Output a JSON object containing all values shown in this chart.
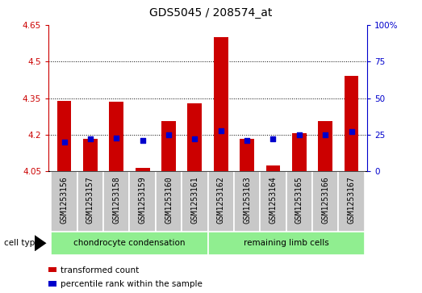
{
  "title": "GDS5045 / 208574_at",
  "samples": [
    "GSM1253156",
    "GSM1253157",
    "GSM1253158",
    "GSM1253159",
    "GSM1253160",
    "GSM1253161",
    "GSM1253162",
    "GSM1253163",
    "GSM1253164",
    "GSM1253165",
    "GSM1253166",
    "GSM1253167"
  ],
  "red_values": [
    4.34,
    4.185,
    4.335,
    4.065,
    4.255,
    4.33,
    4.6,
    4.185,
    4.075,
    4.205,
    4.255,
    4.44
  ],
  "blue_values_pct": [
    20,
    22,
    23,
    21,
    25,
    22,
    28,
    21,
    22,
    25,
    25,
    27
  ],
  "ylim_left": [
    4.05,
    4.65
  ],
  "ylim_right": [
    0,
    100
  ],
  "yticks_left": [
    4.05,
    4.2,
    4.35,
    4.5,
    4.65
  ],
  "yticks_right": [
    0,
    25,
    50,
    75,
    100
  ],
  "ytick_labels_left": [
    "4.05",
    "4.2",
    "4.35",
    "4.5",
    "4.65"
  ],
  "ytick_labels_right": [
    "0",
    "25",
    "50",
    "75",
    "100%"
  ],
  "hlines": [
    4.2,
    4.35,
    4.5
  ],
  "group1_label": "chondrocyte condensation",
  "group2_label": "remaining limb cells",
  "group_color": "#90ee90",
  "cell_type_label": "cell type",
  "legend_red": "transformed count",
  "legend_blue": "percentile rank within the sample",
  "bar_color": "#cc0000",
  "dot_color": "#0000cc",
  "bg_color": "#c8c8c8",
  "left_tick_color": "#cc0000",
  "right_tick_color": "#0000cc",
  "bar_width": 0.55,
  "dot_size": 18,
  "title_fontsize": 10,
  "tick_fontsize": 7.5,
  "label_fontsize": 7,
  "legend_fontsize": 7.5,
  "cell_type_fontsize": 7.5
}
